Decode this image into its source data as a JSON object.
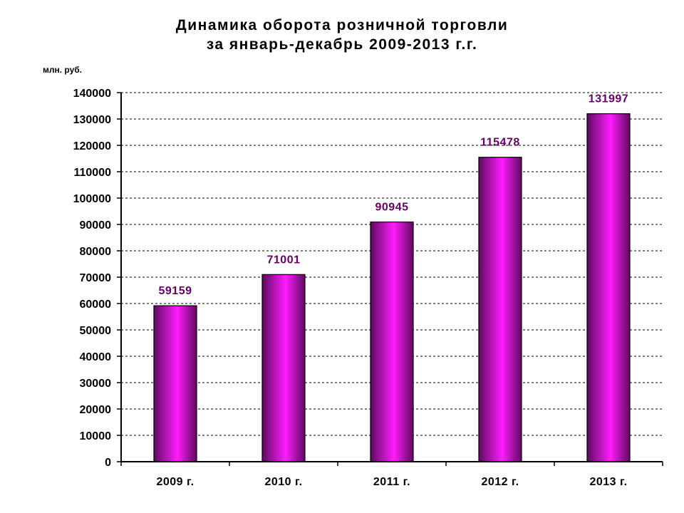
{
  "title_line1": "Динамика оборота розничной торговли",
  "title_line2": "за январь-декабрь 2009-2013 г.г.",
  "unit_label": "млн. руб.",
  "colors": {
    "bar_light": "#ff1cff",
    "bar_dark": "#5e0a5e",
    "data_label": "#660066"
  },
  "chart_data": {
    "type": "bar",
    "title": "Динамика оборота розничной торговли за январь-декабрь 2009-2013 г.г.",
    "ylabel": "млн. руб.",
    "xlabel": "",
    "categories": [
      "2009 г.",
      "2010 г.",
      "2011 г.",
      "2012 г.",
      "2013 г."
    ],
    "values": [
      59159,
      71001,
      90945,
      115478,
      131997
    ],
    "ylim": [
      0,
      140000
    ],
    "yticks": [
      0,
      10000,
      20000,
      30000,
      40000,
      50000,
      60000,
      70000,
      80000,
      90000,
      100000,
      110000,
      120000,
      130000,
      140000
    ],
    "grid": true,
    "legend": "none"
  }
}
